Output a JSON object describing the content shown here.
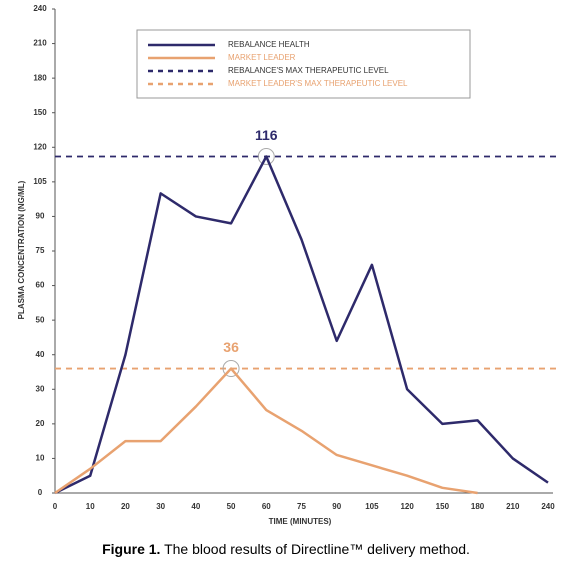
{
  "chart_data": {
    "type": "line",
    "y_label": "PLASMA CONCENTRATION (NG/ML)",
    "x_label": "TIME (MINUTES)",
    "categories": [
      "0",
      "10",
      "20",
      "30",
      "40",
      "50",
      "60",
      "75",
      "90",
      "105",
      "120",
      "150",
      "180",
      "210",
      "240"
    ],
    "series": [
      {
        "name": "REBALANCE HEALTH",
        "color": "#2e2a6b",
        "values": [
          0,
          5,
          40,
          100,
          90,
          87,
          116,
          80,
          44,
          69,
          30,
          20,
          21,
          10,
          3
        ]
      },
      {
        "name": "MARKET LEADER",
        "color": "#e8a270",
        "values": [
          0,
          7,
          15,
          15,
          25,
          36,
          24,
          18,
          11,
          8,
          5,
          1.5,
          0,
          null,
          null
        ]
      }
    ],
    "reference_lines": [
      {
        "name": "REBALANCE'S MAX THERAPEUTIC LEVEL",
        "color": "#2e2a6b",
        "value": 116,
        "peak_index": 6
      },
      {
        "name": "MARKET LEADER'S MAX THERAPEUTIC LEVEL",
        "color": "#e8a270",
        "value": 36,
        "peak_index": 5
      }
    ],
    "ylim": [
      0,
      240
    ],
    "yticks": [
      0,
      10,
      20,
      30,
      40,
      50,
      60,
      75,
      90,
      105,
      120,
      150,
      180,
      210,
      240
    ],
    "y_scale": "tick-spaced",
    "grid": false
  },
  "caption": {
    "label": "Figure 1.",
    "text": "The blood results of Directline™ delivery method."
  }
}
